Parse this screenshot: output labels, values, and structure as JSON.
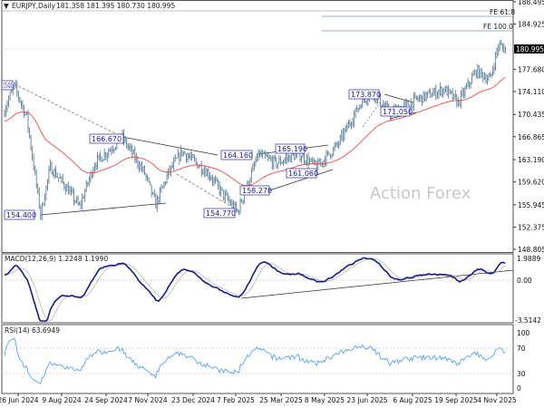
{
  "header": {
    "symbol": "EURJPY,Daily",
    "ohlc": "181.358 181.395 180.730 180.995"
  },
  "watermark": "Action Forex",
  "colors": {
    "bars": "#5b7f98",
    "ma": "#f04a4a",
    "macd": "#1a1a8c",
    "signal": "#b8b8b8",
    "rsi": "#4a9af0",
    "label_border": "#2a2aa0"
  },
  "chart_data": [
    {
      "type": "ohlc",
      "title": "EURJPY,Daily",
      "price_ticks": [
        "188.495",
        "184.925",
        "180.995",
        "177.680",
        "174.110",
        "170.435",
        "166.865",
        "163.190",
        "159.620",
        "155.945",
        "152.375",
        "148.805"
      ],
      "ylim": [
        148.805,
        188.495
      ],
      "current_price": "180.995",
      "x_ticks": [
        "26 Jun 2024",
        "9 Aug 2024",
        "24 Sep 2024",
        "7 Nov 2024",
        "23 Dec 2024",
        "7 Feb 2025",
        "25 Mar 2025",
        "8 May 2025",
        "23 Jun 2025",
        "6 Aug 2025",
        "19 Sep 2025",
        "4 Nov 2025"
      ],
      "close_path_approx": [
        [
          0,
          171.3
        ],
        [
          7,
          175.0
        ],
        [
          16,
          170.0
        ],
        [
          26,
          154.4
        ],
        [
          33,
          162.0
        ],
        [
          46,
          158.3
        ],
        [
          54,
          155.6
        ],
        [
          65,
          162.6
        ],
        [
          85,
          166.69
        ],
        [
          101,
          161.0
        ],
        [
          109,
          156.0
        ],
        [
          118,
          161.0
        ],
        [
          128,
          164.5
        ],
        [
          147,
          161.0
        ],
        [
          157,
          157.8
        ],
        [
          168,
          154.77
        ],
        [
          183,
          164.0
        ],
        [
          196,
          162.6
        ],
        [
          212,
          164.16
        ],
        [
          225,
          162.0
        ],
        [
          240,
          165.5
        ],
        [
          258,
          172.8
        ],
        [
          266,
          173.87
        ],
        [
          278,
          170.6
        ],
        [
          297,
          172.8
        ],
        [
          317,
          174.5
        ],
        [
          327,
          172.3
        ],
        [
          340,
          177.4
        ],
        [
          350,
          176.0
        ],
        [
          356,
          181.5
        ],
        [
          361,
          180.995
        ]
      ],
      "annotations": [
        "175.410",
        "166.670",
        "154.400",
        "164.160",
        "154.770",
        "158.270",
        "165.190",
        "161.060",
        "173.870",
        "171.050"
      ],
      "fib_levels": [
        "FE 61.8",
        "FE 100.0"
      ],
      "moving_average": "55 EMA"
    },
    {
      "type": "line",
      "title": "MACD(12,26,9) 1.2248 1.1990",
      "y_ticks": [
        "1.9889",
        "0.00",
        "-3.5142"
      ],
      "ylim": [
        -3.5142,
        1.9889
      ]
    },
    {
      "type": "line",
      "title": "RSI(14) 63.6949",
      "y_ticks": [
        "100",
        "70",
        "30",
        "0"
      ],
      "ylim": [
        0,
        100
      ]
    }
  ]
}
